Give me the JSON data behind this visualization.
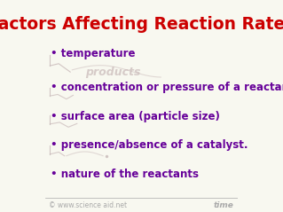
{
  "title": "Factors Affecting Reaction Rates",
  "title_color": "#cc0000",
  "title_fontsize": 13.5,
  "title_bold": true,
  "bullet_items": [
    "temperature",
    "concentration or pressure of a reactant",
    "surface area (particle size)",
    "presence/absence of a catalyst.",
    "nature of the reactants"
  ],
  "bullet_color": "#660099",
  "bullet_fontsize": 8.5,
  "bullet_bold": true,
  "background_color": "#f8f8f0",
  "footer_left": "© www.science aid.net",
  "footer_right": "time",
  "footer_color": "#aaaaaa",
  "footer_fontsize": 5.5,
  "watermark_text": "products",
  "watermark_color": "#c8b8b8",
  "watermark_fontsize": 9,
  "line_color": "#c8b8b8"
}
